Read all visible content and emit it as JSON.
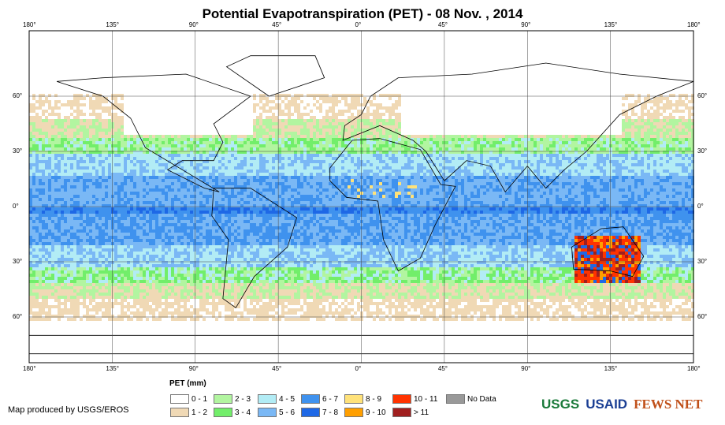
{
  "title": "Potential Evapotranspiration (PET) - 08 Nov. , 2014",
  "lon_ticks": [
    "180°",
    "135°",
    "90°",
    "45°",
    "0°",
    "45°",
    "90°",
    "135°",
    "180°"
  ],
  "lat_ticks": [
    "60°",
    "30°",
    "0°",
    "30°",
    "60°"
  ],
  "legend": {
    "title": "PET (mm)",
    "items": [
      {
        "label": "0 - 1",
        "color": "#ffffff"
      },
      {
        "label": "1 - 2",
        "color": "#f0d9b5"
      },
      {
        "label": "2 - 3",
        "color": "#b2f5a0"
      },
      {
        "label": "3 - 4",
        "color": "#72ee6a"
      },
      {
        "label": "4 - 5",
        "color": "#b2ecf5"
      },
      {
        "label": "5 - 6",
        "color": "#7ab8f5"
      },
      {
        "label": "6 - 7",
        "color": "#3f92ee"
      },
      {
        "label": "7 - 8",
        "color": "#1e68e6"
      },
      {
        "label": "8 - 9",
        "color": "#ffe27a"
      },
      {
        "label": "9 - 10",
        "color": "#ff9f00"
      },
      {
        "label": "10 - 11",
        "color": "#ff3300"
      },
      {
        "label": "> 11",
        "color": "#a01f1f"
      },
      {
        "label": "No Data",
        "color": "#999999"
      }
    ]
  },
  "credit": "Map produced by USGS/EROS",
  "logos": [
    "USGS",
    "USAID",
    "FEWS NET"
  ]
}
